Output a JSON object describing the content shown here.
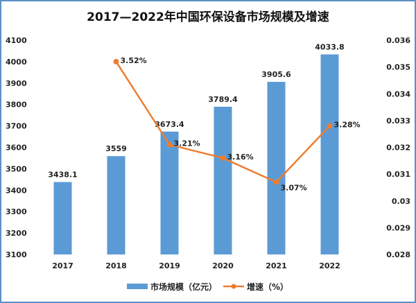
{
  "chart_data": {
    "type": "bar+line",
    "title": "2017—2022年中国环保设备市场规模及增速",
    "categories": [
      "2017",
      "2018",
      "2019",
      "2020",
      "2021",
      "2022"
    ],
    "series": [
      {
        "name": "市场规模（亿元）",
        "type": "bar",
        "axis": "left",
        "color": "#5b9bd5",
        "values": [
          3438.1,
          3559,
          3673.4,
          3789.4,
          3905.6,
          4033.8
        ],
        "labels": [
          "3438.1",
          "3559",
          "3673.4",
          "3789.4",
          "3905.6",
          "4033.8"
        ]
      },
      {
        "name": "增速（%）",
        "type": "line",
        "axis": "right",
        "color": "#ed7d31",
        "values": [
          null,
          0.0352,
          0.0321,
          0.0316,
          0.0307,
          0.0328
        ],
        "labels": [
          "",
          "3.52%",
          "3.21%",
          "3.16%",
          "3.07%",
          "3.28%"
        ]
      }
    ],
    "left_axis": {
      "ylim": [
        3100,
        4100
      ],
      "ticks": [
        "3100",
        "3200",
        "3300",
        "3400",
        "3500",
        "3600",
        "3700",
        "3800",
        "3900",
        "4000",
        "4100"
      ]
    },
    "right_axis": {
      "ylim": [
        0.028,
        0.036
      ],
      "ticks": [
        "0.028",
        "0.029",
        "0.03",
        "0.031",
        "0.032",
        "0.033",
        "0.034",
        "0.035",
        "0.036"
      ]
    },
    "grid": false,
    "legend": "bottom",
    "frame_color": "#5b8fc7"
  }
}
